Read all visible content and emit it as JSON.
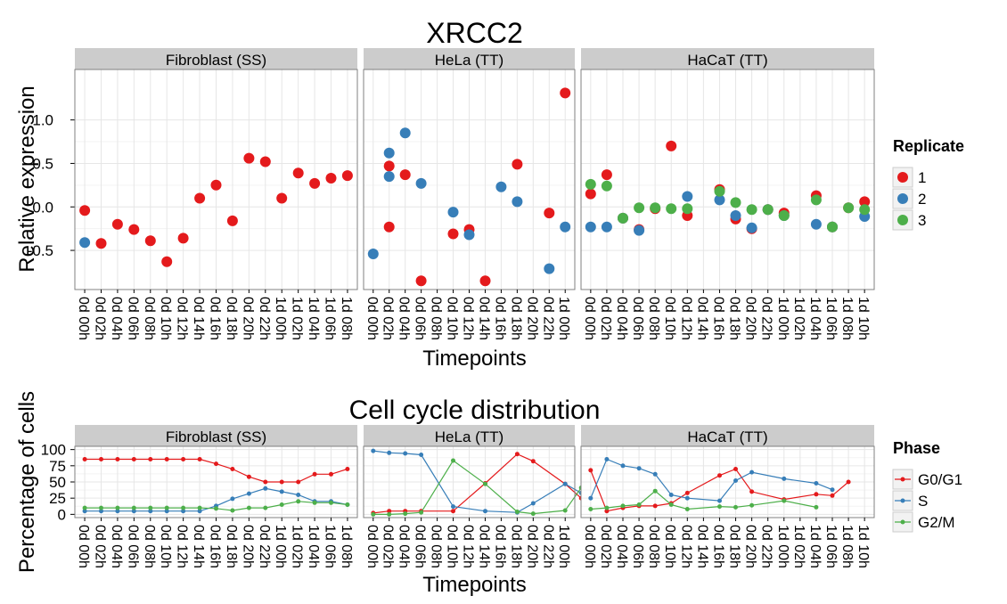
{
  "colors": {
    "panel_bg": "#ffffff",
    "grid_major": "#e6e6e6",
    "grid_minor": "#f3f3f3",
    "strip_bg": "#cccccc",
    "panel_border": "#808080",
    "red": "#e41a1c",
    "blue": "#377eb8",
    "green": "#4daf4a"
  },
  "chart_data": [
    {
      "type": "scatter",
      "title": "XRCC2",
      "xlabel": "Timepoints",
      "ylabel": "Relative expression",
      "ylim": [
        -0.95,
        1.58
      ],
      "y_ticks": [
        -0.5,
        0,
        0.5,
        1
      ],
      "y_tick_labels": [
        "-0.5",
        "0.0",
        "0.5",
        "1.0"
      ],
      "grid": true,
      "legend": {
        "title": "Replicate",
        "position": "right",
        "entries": [
          "1",
          "2",
          "3"
        ]
      },
      "panels": [
        {
          "strip": "Fibroblast (SS)",
          "x": [
            "0d 00h",
            "0d 02h",
            "0d 04h",
            "0d 06h",
            "0d 08h",
            "0d 10h",
            "0d 12h",
            "0d 14h",
            "0d 16h",
            "0d 18h",
            "0d 20h",
            "0d 22h",
            "1d 00h",
            "1d 02h",
            "1d 04h",
            "1d 06h",
            "1d 08h"
          ],
          "series": [
            {
              "name": "1",
              "values": [
                -0.04,
                -0.42,
                -0.2,
                -0.26,
                -0.39,
                -0.63,
                -0.36,
                0.1,
                0.25,
                -0.16,
                0.56,
                0.52,
                0.1,
                0.39,
                0.27,
                0.33,
                0.36
              ]
            },
            {
              "name": "2",
              "values": [
                -0.41,
                null,
                null,
                null,
                null,
                null,
                null,
                null,
                null,
                null,
                null,
                null,
                null,
                null,
                null,
                null,
                null
              ]
            }
          ]
        },
        {
          "strip": "HeLa (TT)",
          "x": [
            "0d 00h",
            "0d 02h",
            "0d 04h",
            "0d 06h",
            "0d 08h",
            "0d 10h",
            "0d 12h",
            "0d 14h",
            "0d 16h",
            "0d 18h",
            "0d 20h",
            "0d 22h",
            "1d 00h"
          ],
          "series": [
            {
              "name": "1",
              "values": [
                null,
                0.47,
                0.37,
                -0.85,
                null,
                -0.31,
                -0.26,
                -0.85,
                null,
                0.49,
                null,
                -0.07,
                1.31
              ]
            },
            {
              "name": "2",
              "values": [
                -0.54,
                0.35,
                0.85,
                0.27,
                null,
                -0.06,
                -0.32,
                null,
                0.23,
                0.06,
                null,
                -0.71,
                -0.23
              ]
            },
            {
              "name": "1",
              "values": [
                null,
                -0.23,
                null,
                null,
                null,
                null,
                null,
                null,
                null,
                null,
                null,
                null,
                null
              ]
            },
            {
              "name": "2",
              "values": [
                null,
                0.62,
                null,
                null,
                null,
                null,
                null,
                null,
                null,
                null,
                null,
                null,
                null
              ]
            }
          ]
        },
        {
          "strip": "HaCaT (TT)",
          "x": [
            "0d 00h",
            "0d 02h",
            "0d 04h",
            "0d 06h",
            "0d 08h",
            "0d 10h",
            "0d 12h",
            "0d 14h",
            "0d 16h",
            "0d 18h",
            "0d 20h",
            "0d 22h",
            "1d 00h",
            "1d 02h",
            "1d 04h",
            "1d 06h",
            "1d 08h",
            "1d 10h"
          ],
          "series": [
            {
              "name": "1",
              "values": [
                0.15,
                0.37,
                -0.13,
                -0.26,
                -0.02,
                0.7,
                -0.1,
                null,
                0.2,
                -0.14,
                -0.25,
                -0.03,
                -0.07,
                null,
                0.13,
                -0.23,
                -0.01,
                0.06
              ]
            },
            {
              "name": "2",
              "values": [
                -0.23,
                -0.23,
                -0.13,
                -0.27,
                null,
                null,
                0.12,
                null,
                0.08,
                -0.1,
                -0.24,
                -0.03,
                -0.1,
                null,
                -0.2,
                -0.23,
                null,
                -0.11
              ]
            },
            {
              "name": "3",
              "values": [
                0.26,
                0.24,
                -0.13,
                -0.01,
                -0.01,
                -0.02,
                -0.02,
                null,
                0.18,
                0.05,
                -0.03,
                -0.03,
                -0.1,
                null,
                0.08,
                -0.23,
                -0.01,
                -0.03
              ]
            }
          ]
        }
      ]
    },
    {
      "type": "line",
      "title": "Cell cycle distribution",
      "xlabel": "Timepoints",
      "ylabel": "Percentage of cells",
      "ylim": [
        -5,
        105
      ],
      "y_ticks": [
        0,
        25,
        50,
        75,
        100
      ],
      "y_tick_labels": [
        "0",
        "25",
        "50",
        "75",
        "100"
      ],
      "grid": true,
      "legend": {
        "title": "Phase",
        "position": "right",
        "entries": [
          "G0/G1",
          "S",
          "G2/M"
        ]
      },
      "panels": [
        {
          "strip": "Fibroblast (SS)",
          "x": [
            "0d 00h",
            "0d 02h",
            "0d 04h",
            "0d 06h",
            "0d 08h",
            "0d 10h",
            "0d 12h",
            "0d 14h",
            "0d 16h",
            "0d 18h",
            "0d 20h",
            "0d 22h",
            "1d 00h",
            "1d 02h",
            "1d 04h",
            "1d 06h",
            "1d 08h"
          ],
          "series": [
            {
              "name": "G0/G1",
              "values": [
                85,
                85,
                85,
                85,
                85,
                85,
                85,
                85,
                78,
                70,
                58,
                50,
                50,
                50,
                62,
                62,
                70
              ]
            },
            {
              "name": "S",
              "values": [
                5,
                5,
                5,
                5,
                5,
                5,
                5,
                5,
                13,
                24,
                32,
                40,
                35,
                30,
                20,
                20,
                15
              ]
            },
            {
              "name": "G2/M",
              "values": [
                10,
                10,
                10,
                10,
                10,
                10,
                10,
                10,
                9,
                6,
                10,
                10,
                15,
                20,
                18,
                18,
                15
              ]
            }
          ]
        },
        {
          "strip": "HeLa (TT)",
          "x": [
            "0d 00h",
            "0d 02h",
            "0d 04h",
            "0d 06h",
            "0d 08h",
            "0d 10h",
            "0d 12h",
            "0d 14h",
            "0d 16h",
            "0d 18h",
            "0d 20h",
            "0d 22h",
            "1d 00h"
          ],
          "series": [
            {
              "name": "G0/G1",
              "x_positions": [
                1,
                2,
                3,
                4,
                6,
                8,
                10,
                11,
                13,
                14,
                15
              ],
              "values": [
                2,
                5,
                5,
                5,
                5,
                48,
                93,
                82,
                47,
                25,
                45
              ]
            },
            {
              "name": "S",
              "x_positions": [
                1,
                2,
                3,
                4,
                6,
                8,
                10,
                11,
                13,
                14,
                15
              ],
              "values": [
                98,
                95,
                94,
                92,
                12,
                5,
                3,
                17,
                47,
                33,
                17
              ]
            },
            {
              "name": "G2/M",
              "x_positions": [
                1,
                2,
                3,
                4,
                6,
                8,
                10,
                11,
                13,
                14,
                15
              ],
              "values": [
                0,
                0,
                1,
                3,
                83,
                47,
                4,
                1,
                6,
                41,
                38
              ]
            }
          ]
        },
        {
          "strip": "HaCaT (TT)",
          "x": [
            "0d 00h",
            "0d 02h",
            "0d 04h",
            "0d 06h",
            "0d 08h",
            "0d 10h",
            "0d 12h",
            "0d 14h",
            "0d 16h",
            "0d 18h",
            "0d 20h",
            "0d 22h",
            "1d 00h",
            "1d 02h",
            "1d 04h",
            "1d 06h",
            "1d 08h",
            "1d 10h"
          ],
          "series": [
            {
              "name": "G0/G1",
              "values": [
                68,
                5,
                10,
                13,
                13,
                17,
                33,
                null,
                60,
                70,
                35,
                null,
                23,
                null,
                31,
                29,
                50,
                null
              ]
            },
            {
              "name": "S",
              "values": [
                25,
                85,
                75,
                71,
                62,
                30,
                25,
                null,
                21,
                52,
                65,
                null,
                55,
                null,
                48,
                38,
                null,
                null
              ]
            },
            {
              "name": "G2/M",
              "values": [
                8,
                10,
                13,
                15,
                36,
                15,
                8,
                null,
                12,
                11,
                14,
                null,
                21,
                null,
                11,
                null,
                null,
                null
              ]
            }
          ]
        }
      ]
    }
  ]
}
